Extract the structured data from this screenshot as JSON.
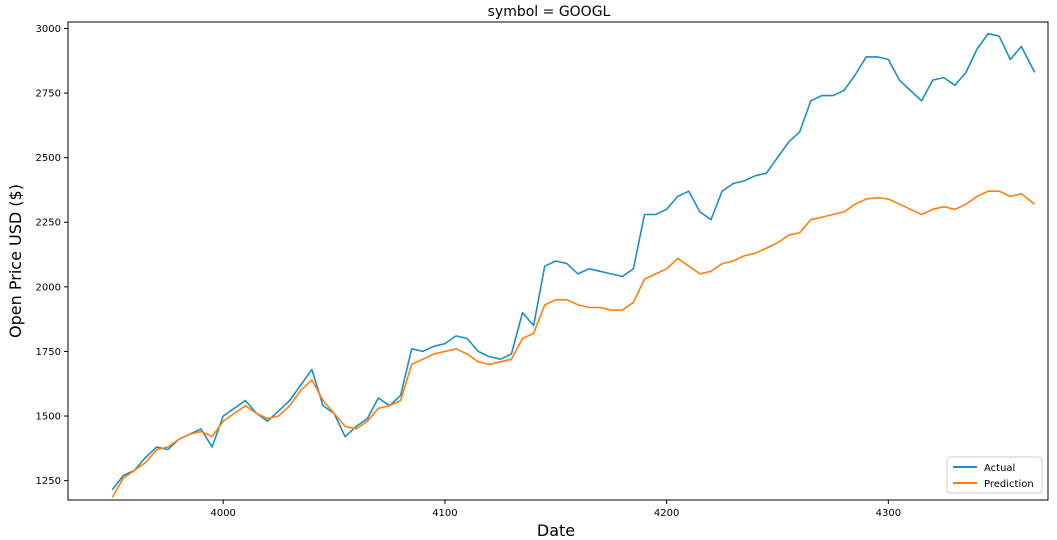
{
  "chart_data": {
    "type": "line",
    "title": "symbol = GOOGL",
    "xlabel": "Date",
    "ylabel": "Open Price USD ($)",
    "xlim": [
      3930,
      4372
    ],
    "ylim": [
      1175,
      3025
    ],
    "x_ticks": [
      4000,
      4100,
      4200,
      4300
    ],
    "y_ticks": [
      1250,
      1500,
      1750,
      2000,
      2250,
      2500,
      2750,
      3000
    ],
    "grid": false,
    "legend_position": "lower right",
    "series": [
      {
        "name": "Actual",
        "color": "#1f8ebd",
        "points": [
          [
            3950,
            1215
          ],
          [
            3955,
            1270
          ],
          [
            3960,
            1290
          ],
          [
            3965,
            1340
          ],
          [
            3970,
            1380
          ],
          [
            3975,
            1370
          ],
          [
            3980,
            1410
          ],
          [
            3985,
            1430
          ],
          [
            3990,
            1450
          ],
          [
            3995,
            1380
          ],
          [
            4000,
            1500
          ],
          [
            4005,
            1530
          ],
          [
            4010,
            1560
          ],
          [
            4015,
            1510
          ],
          [
            4020,
            1480
          ],
          [
            4025,
            1520
          ],
          [
            4030,
            1560
          ],
          [
            4035,
            1620
          ],
          [
            4040,
            1680
          ],
          [
            4045,
            1540
          ],
          [
            4050,
            1510
          ],
          [
            4055,
            1420
          ],
          [
            4060,
            1460
          ],
          [
            4065,
            1490
          ],
          [
            4070,
            1570
          ],
          [
            4075,
            1540
          ],
          [
            4080,
            1580
          ],
          [
            4085,
            1760
          ],
          [
            4090,
            1750
          ],
          [
            4095,
            1770
          ],
          [
            4100,
            1780
          ],
          [
            4105,
            1810
          ],
          [
            4110,
            1800
          ],
          [
            4115,
            1750
          ],
          [
            4120,
            1730
          ],
          [
            4125,
            1720
          ],
          [
            4130,
            1740
          ],
          [
            4135,
            1900
          ],
          [
            4140,
            1850
          ],
          [
            4145,
            2080
          ],
          [
            4150,
            2100
          ],
          [
            4155,
            2090
          ],
          [
            4160,
            2050
          ],
          [
            4165,
            2070
          ],
          [
            4170,
            2060
          ],
          [
            4175,
            2050
          ],
          [
            4180,
            2040
          ],
          [
            4185,
            2070
          ],
          [
            4190,
            2280
          ],
          [
            4195,
            2280
          ],
          [
            4200,
            2300
          ],
          [
            4205,
            2350
          ],
          [
            4210,
            2370
          ],
          [
            4215,
            2290
          ],
          [
            4220,
            2260
          ],
          [
            4225,
            2370
          ],
          [
            4230,
            2400
          ],
          [
            4235,
            2410
          ],
          [
            4240,
            2430
          ],
          [
            4245,
            2440
          ],
          [
            4250,
            2500
          ],
          [
            4255,
            2560
          ],
          [
            4260,
            2600
          ],
          [
            4265,
            2720
          ],
          [
            4270,
            2740
          ],
          [
            4275,
            2740
          ],
          [
            4280,
            2760
          ],
          [
            4285,
            2820
          ],
          [
            4290,
            2890
          ],
          [
            4295,
            2890
          ],
          [
            4300,
            2880
          ],
          [
            4305,
            2800
          ],
          [
            4310,
            2760
          ],
          [
            4315,
            2720
          ],
          [
            4320,
            2800
          ],
          [
            4325,
            2810
          ],
          [
            4330,
            2780
          ],
          [
            4335,
            2830
          ],
          [
            4340,
            2920
          ],
          [
            4345,
            2980
          ],
          [
            4350,
            2970
          ],
          [
            4355,
            2880
          ],
          [
            4360,
            2930
          ],
          [
            4363,
            2880
          ],
          [
            4366,
            2830
          ]
        ]
      },
      {
        "name": "Prediction",
        "color": "#ff7f0e",
        "points": [
          [
            3950,
            1185
          ],
          [
            3955,
            1260
          ],
          [
            3960,
            1290
          ],
          [
            3965,
            1320
          ],
          [
            3970,
            1370
          ],
          [
            3975,
            1380
          ],
          [
            3980,
            1410
          ],
          [
            3985,
            1430
          ],
          [
            3990,
            1440
          ],
          [
            3995,
            1420
          ],
          [
            4000,
            1480
          ],
          [
            4005,
            1510
          ],
          [
            4010,
            1540
          ],
          [
            4015,
            1510
          ],
          [
            4020,
            1490
          ],
          [
            4025,
            1500
          ],
          [
            4030,
            1540
          ],
          [
            4035,
            1600
          ],
          [
            4040,
            1640
          ],
          [
            4045,
            1560
          ],
          [
            4050,
            1510
          ],
          [
            4055,
            1460
          ],
          [
            4060,
            1450
          ],
          [
            4065,
            1480
          ],
          [
            4070,
            1530
          ],
          [
            4075,
            1540
          ],
          [
            4080,
            1560
          ],
          [
            4085,
            1700
          ],
          [
            4090,
            1720
          ],
          [
            4095,
            1740
          ],
          [
            4100,
            1750
          ],
          [
            4105,
            1760
          ],
          [
            4110,
            1740
          ],
          [
            4115,
            1710
          ],
          [
            4120,
            1700
          ],
          [
            4125,
            1710
          ],
          [
            4130,
            1720
          ],
          [
            4135,
            1800
          ],
          [
            4140,
            1820
          ],
          [
            4145,
            1930
          ],
          [
            4150,
            1950
          ],
          [
            4155,
            1950
          ],
          [
            4160,
            1930
          ],
          [
            4165,
            1920
          ],
          [
            4170,
            1920
          ],
          [
            4175,
            1910
          ],
          [
            4180,
            1910
          ],
          [
            4185,
            1940
          ],
          [
            4190,
            2030
          ],
          [
            4195,
            2050
          ],
          [
            4200,
            2070
          ],
          [
            4205,
            2110
          ],
          [
            4210,
            2080
          ],
          [
            4215,
            2050
          ],
          [
            4220,
            2060
          ],
          [
            4225,
            2090
          ],
          [
            4230,
            2100
          ],
          [
            4235,
            2120
          ],
          [
            4240,
            2130
          ],
          [
            4245,
            2150
          ],
          [
            4250,
            2170
          ],
          [
            4255,
            2200
          ],
          [
            4260,
            2210
          ],
          [
            4265,
            2260
          ],
          [
            4270,
            2270
          ],
          [
            4275,
            2280
          ],
          [
            4280,
            2290
          ],
          [
            4285,
            2320
          ],
          [
            4290,
            2340
          ],
          [
            4295,
            2345
          ],
          [
            4300,
            2340
          ],
          [
            4305,
            2320
          ],
          [
            4310,
            2300
          ],
          [
            4315,
            2280
          ],
          [
            4320,
            2300
          ],
          [
            4325,
            2310
          ],
          [
            4330,
            2300
          ],
          [
            4335,
            2320
          ],
          [
            4340,
            2350
          ],
          [
            4345,
            2370
          ],
          [
            4350,
            2370
          ],
          [
            4355,
            2350
          ],
          [
            4360,
            2360
          ],
          [
            4363,
            2340
          ],
          [
            4366,
            2320
          ]
        ]
      }
    ]
  }
}
